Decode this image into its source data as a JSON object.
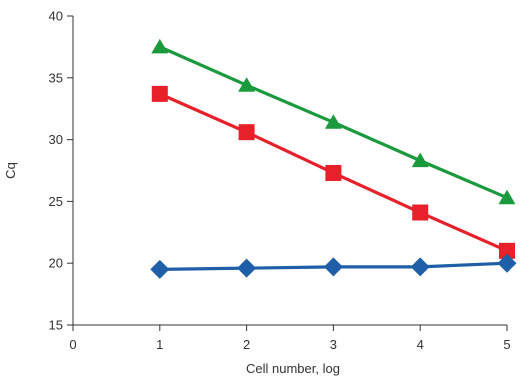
{
  "chart_data": {
    "type": "line",
    "xlabel": "Cell number, log",
    "ylabel": "Cq",
    "xlim": [
      0,
      5
    ],
    "ylim": [
      15,
      40
    ],
    "x_ticks": [
      0,
      1,
      2,
      3,
      4,
      5
    ],
    "y_ticks": [
      15,
      20,
      25,
      30,
      35,
      40
    ],
    "grid": false,
    "series": [
      {
        "color": "#1a9a3c",
        "marker": "triangle",
        "x": [
          1,
          2,
          3,
          4,
          5
        ],
        "y": [
          37.5,
          34.4,
          31.4,
          28.3,
          25.3
        ]
      },
      {
        "color": "#e8202a",
        "marker": "square",
        "x": [
          1,
          2,
          3,
          4,
          5
        ],
        "y": [
          33.7,
          30.6,
          27.3,
          24.1,
          21.0
        ]
      },
      {
        "color": "#1f5fa8",
        "marker": "diamond",
        "x": [
          1,
          2,
          3,
          4,
          5
        ],
        "y": [
          19.5,
          19.6,
          19.7,
          19.7,
          20.0
        ]
      }
    ]
  }
}
